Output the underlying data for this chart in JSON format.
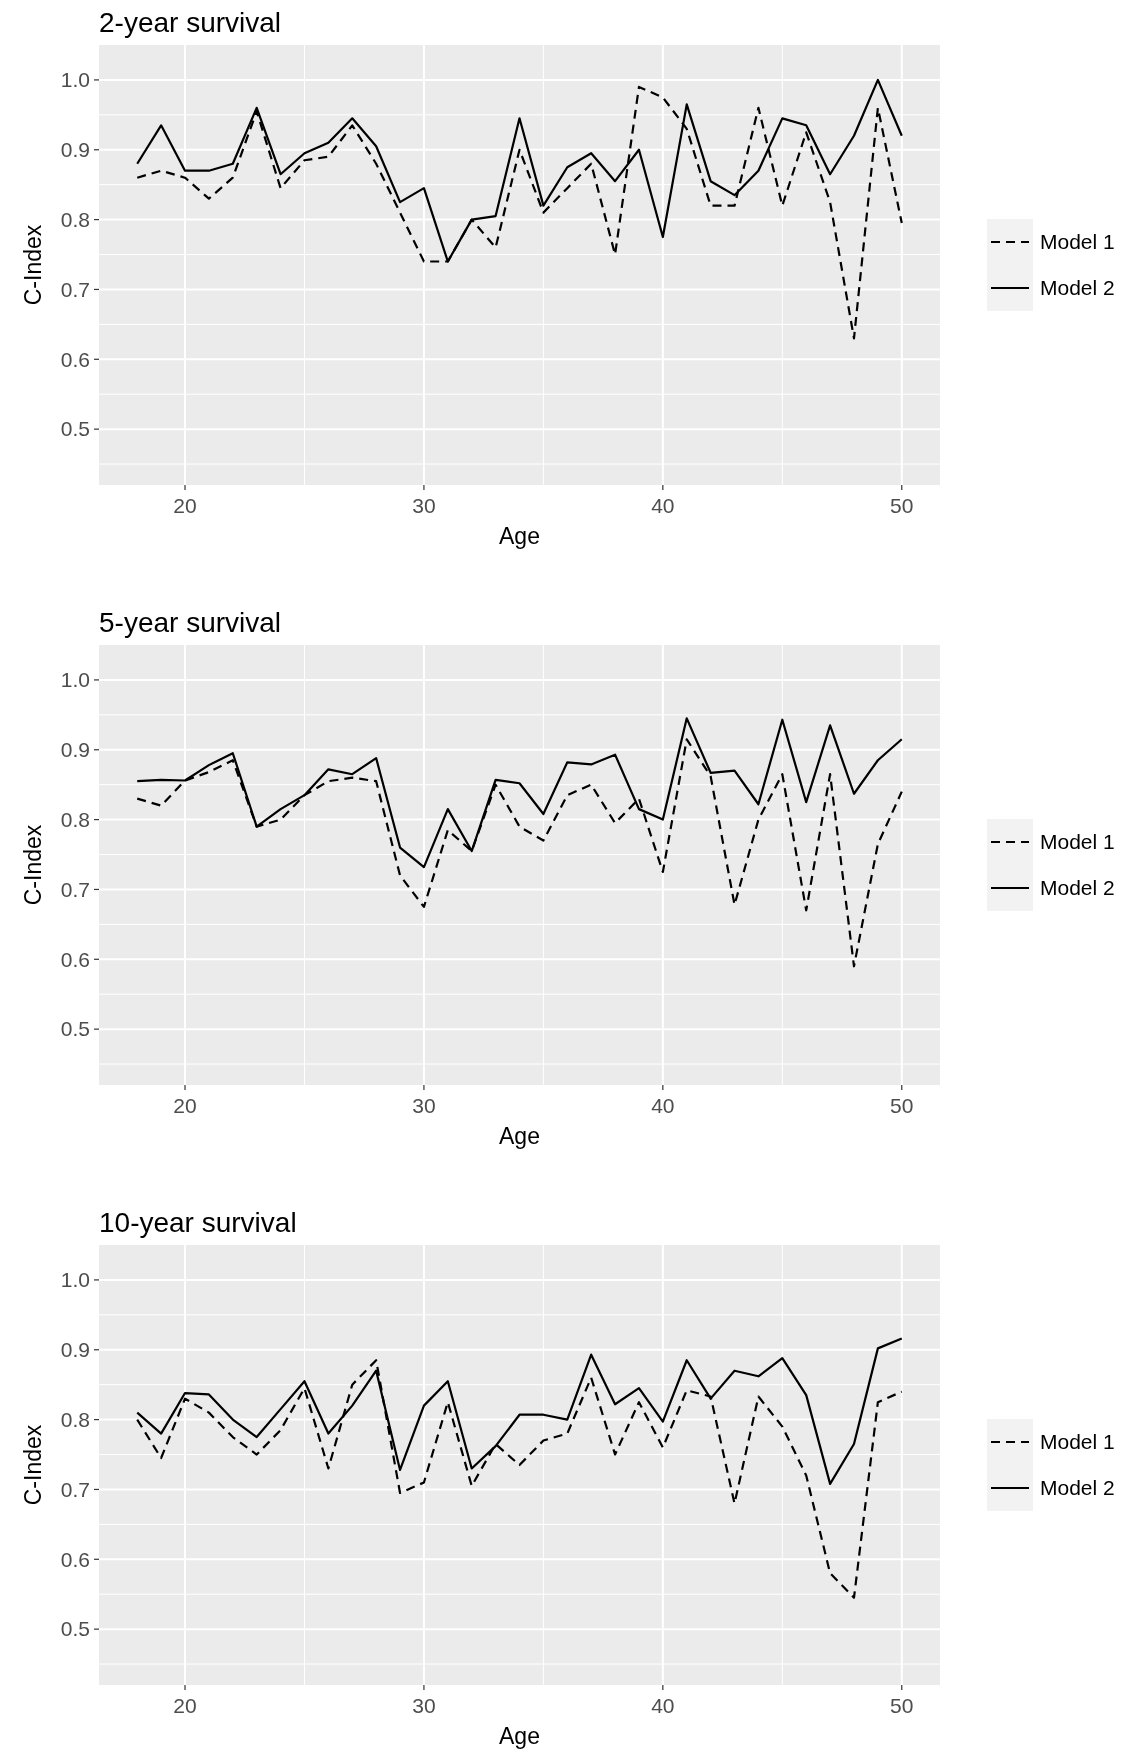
{
  "chart_data": [
    {
      "type": "line",
      "title": "2-year survival",
      "xlabel": "Age",
      "ylabel": "C-Index",
      "x": [
        18,
        19,
        20,
        21,
        22,
        23,
        24,
        25,
        26,
        27,
        28,
        29,
        30,
        31,
        32,
        33,
        34,
        35,
        36,
        37,
        38,
        39,
        40,
        41,
        42,
        43,
        44,
        45,
        46,
        47,
        48,
        49,
        50
      ],
      "xlim": [
        16.4,
        51.6
      ],
      "xticks": [
        20,
        30,
        40,
        50
      ],
      "ylim": [
        0.42,
        1.05
      ],
      "yticks": [
        {
          "value": 0.5,
          "label": "0.5"
        },
        {
          "value": 0.6,
          "label": "0.6"
        },
        {
          "value": 0.7,
          "label": "0.7"
        },
        {
          "value": 0.8,
          "label": "0.8"
        },
        {
          "value": 0.9,
          "label": "0.9"
        },
        {
          "value": 1.0,
          "label": "1.0"
        }
      ],
      "grid": true,
      "legend": "right",
      "series": [
        {
          "name": "Model 1",
          "color": "#000000",
          "line_style": "dashed",
          "values": [
            0.86,
            0.87,
            0.86,
            0.83,
            0.86,
            0.955,
            0.845,
            0.885,
            0.89,
            0.935,
            0.88,
            0.81,
            0.74,
            0.74,
            0.8,
            0.76,
            0.9,
            0.81,
            0.845,
            0.88,
            0.75,
            0.99,
            0.975,
            0.93,
            0.82,
            0.82,
            0.96,
            0.82,
            0.925,
            0.825,
            0.63,
            0.96,
            0.795
          ]
        },
        {
          "name": "Model 2",
          "color": "#000000",
          "line_style": "solid",
          "values": [
            0.88,
            0.935,
            0.87,
            0.87,
            0.88,
            0.96,
            0.865,
            0.895,
            0.91,
            0.945,
            0.905,
            0.825,
            0.845,
            0.74,
            0.8,
            0.805,
            0.945,
            0.82,
            0.875,
            0.895,
            0.855,
            0.9,
            0.775,
            0.965,
            0.855,
            0.835,
            0.87,
            0.945,
            0.935,
            0.865,
            0.92,
            1.0,
            0.92
          ]
        }
      ]
    },
    {
      "type": "line",
      "title": "5-year survival",
      "xlabel": "Age",
      "ylabel": "C-Index",
      "x": [
        18,
        19,
        20,
        21,
        22,
        23,
        24,
        25,
        26,
        27,
        28,
        29,
        30,
        31,
        32,
        33,
        34,
        35,
        36,
        37,
        38,
        39,
        40,
        41,
        42,
        43,
        44,
        45,
        46,
        47,
        48,
        49,
        50
      ],
      "xlim": [
        16.4,
        51.6
      ],
      "xticks": [
        20,
        30,
        40,
        50
      ],
      "ylim": [
        0.42,
        1.05
      ],
      "yticks": [
        {
          "value": 0.5,
          "label": "0.5"
        },
        {
          "value": 0.6,
          "label": "0.6"
        },
        {
          "value": 0.7,
          "label": "0.7"
        },
        {
          "value": 0.8,
          "label": "0.8"
        },
        {
          "value": 0.9,
          "label": "0.9"
        },
        {
          "value": 1.0,
          "label": "1.0"
        }
      ],
      "grid": true,
      "legend": "right",
      "series": [
        {
          "name": "Model 1",
          "color": "#000000",
          "line_style": "dashed",
          "values": [
            0.83,
            0.82,
            0.856,
            0.868,
            0.885,
            0.79,
            0.8,
            0.835,
            0.855,
            0.86,
            0.855,
            0.72,
            0.675,
            0.785,
            0.755,
            0.85,
            0.79,
            0.77,
            0.835,
            0.85,
            0.795,
            0.83,
            0.725,
            0.915,
            0.862,
            0.678,
            0.8,
            0.865,
            0.67,
            0.865,
            0.59,
            0.765,
            0.84
          ]
        },
        {
          "name": "Model 2",
          "color": "#000000",
          "line_style": "solid",
          "values": [
            0.855,
            0.857,
            0.856,
            0.878,
            0.895,
            0.79,
            0.815,
            0.835,
            0.872,
            0.865,
            0.888,
            0.76,
            0.732,
            0.815,
            0.755,
            0.857,
            0.852,
            0.808,
            0.882,
            0.879,
            0.893,
            0.815,
            0.8,
            0.945,
            0.867,
            0.87,
            0.822,
            0.943,
            0.825,
            0.935,
            0.837,
            0.885,
            0.915
          ]
        }
      ]
    },
    {
      "type": "line",
      "title": "10-year survival",
      "xlabel": "Age",
      "ylabel": "C-Index",
      "x": [
        18,
        19,
        20,
        21,
        22,
        23,
        24,
        25,
        26,
        27,
        28,
        29,
        30,
        31,
        32,
        33,
        34,
        35,
        36,
        37,
        38,
        39,
        40,
        41,
        42,
        43,
        44,
        45,
        46,
        47,
        48,
        49,
        50
      ],
      "xlim": [
        16.4,
        51.6
      ],
      "xticks": [
        20,
        30,
        40,
        50
      ],
      "ylim": [
        0.42,
        1.05
      ],
      "yticks": [
        {
          "value": 0.5,
          "label": "0.5"
        },
        {
          "value": 0.6,
          "label": "0.6"
        },
        {
          "value": 0.7,
          "label": "0.7"
        },
        {
          "value": 0.8,
          "label": "0.8"
        },
        {
          "value": 0.9,
          "label": "0.9"
        },
        {
          "value": 1.0,
          "label": "1.0"
        }
      ],
      "grid": true,
      "legend": "right",
      "series": [
        {
          "name": "Model 1",
          "color": "#000000",
          "line_style": "dashed",
          "values": [
            0.8,
            0.745,
            0.83,
            0.81,
            0.775,
            0.75,
            0.785,
            0.845,
            0.73,
            0.85,
            0.885,
            0.695,
            0.71,
            0.825,
            0.705,
            0.765,
            0.735,
            0.77,
            0.78,
            0.86,
            0.75,
            0.825,
            0.76,
            0.842,
            0.833,
            0.68,
            0.833,
            0.79,
            0.72,
            0.58,
            0.545,
            0.825,
            0.84
          ]
        },
        {
          "name": "Model 2",
          "color": "#000000",
          "line_style": "solid",
          "values": [
            0.81,
            0.78,
            0.838,
            0.836,
            0.8,
            0.775,
            0.815,
            0.855,
            0.78,
            0.82,
            0.87,
            0.728,
            0.82,
            0.855,
            0.73,
            0.762,
            0.807,
            0.807,
            0.8,
            0.893,
            0.822,
            0.845,
            0.797,
            0.885,
            0.83,
            0.87,
            0.862,
            0.888,
            0.835,
            0.708,
            0.765,
            0.902,
            0.916
          ]
        }
      ]
    }
  ]
}
